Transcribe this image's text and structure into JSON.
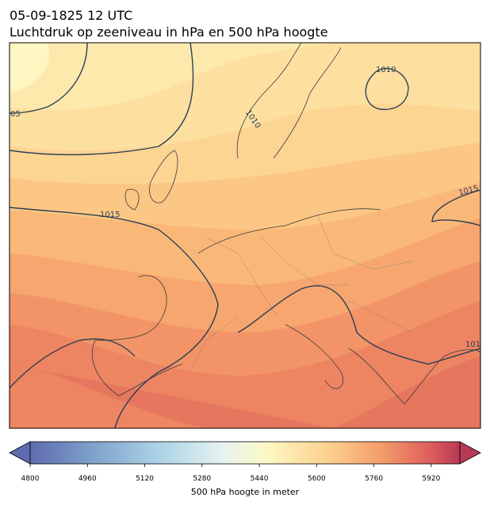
{
  "header": {
    "title": "05-09-1825 12 UTC",
    "subtitle": "Luchtdruk op zeeniveau in hPa en 500 hPa hoogte"
  },
  "map": {
    "contour_labels": [
      "1010",
      "1010",
      "05",
      "1015",
      "1015",
      "101"
    ]
  },
  "colorbar": {
    "label": "500 hPa hoogte in meter",
    "lim": [
      4800,
      6000
    ],
    "ticks": [
      4800,
      4960,
      5120,
      5280,
      5440,
      5600,
      5760,
      5920
    ]
  }
}
